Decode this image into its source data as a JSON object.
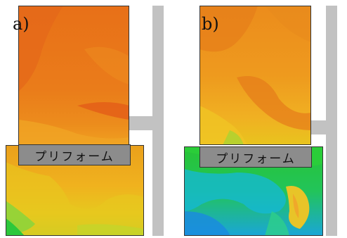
{
  "panels": [
    {
      "label": "a)",
      "preform_label": "プリフォーム"
    },
    {
      "label": "b)",
      "preform_label": "プリフォーム"
    }
  ],
  "colors": {
    "frame_gray": "#c2c2c2",
    "preform_gray": "#8c8c8c",
    "a_upper_base": "#e8781a",
    "a_lower_base": "#eea21c",
    "b_upper_base": "#ec9a1e",
    "b_lower_base": "#22c432"
  }
}
